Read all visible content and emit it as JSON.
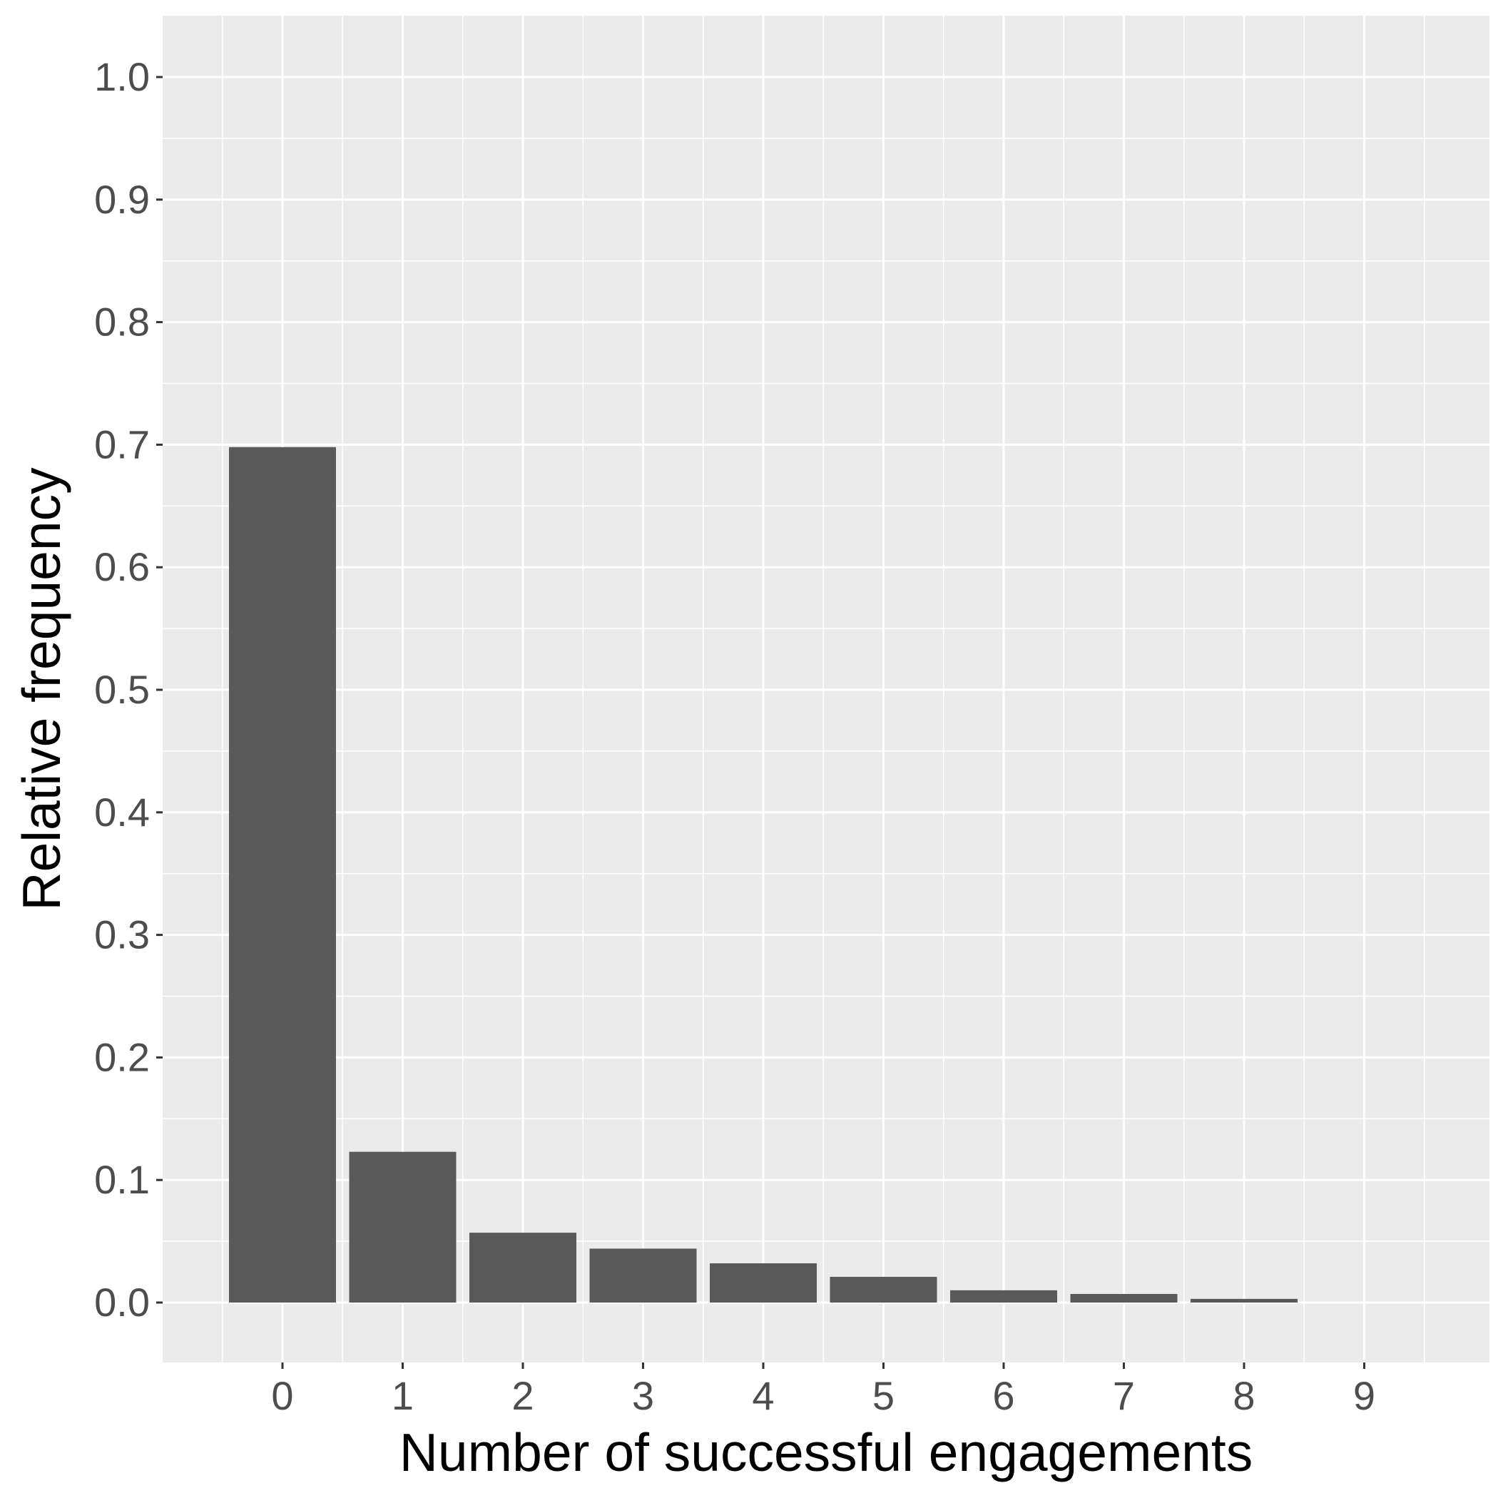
{
  "chart_data": {
    "type": "bar",
    "categories": [
      "0",
      "1",
      "2",
      "3",
      "4",
      "5",
      "6",
      "7",
      "8",
      "9"
    ],
    "values": [
      0.698,
      0.123,
      0.057,
      0.044,
      0.032,
      0.021,
      0.01,
      0.007,
      0.003,
      0.0
    ],
    "xlabel": "Number of successful engagements",
    "ylabel": "Relative frequency",
    "ylim": [
      -0.048,
      1.05
    ],
    "yticks": [
      "0.0",
      "0.1",
      "0.2",
      "0.3",
      "0.4",
      "0.5",
      "0.6",
      "0.7",
      "0.8",
      "0.9",
      "1.0"
    ],
    "grid": true,
    "colors": {
      "bar": "#595959",
      "panel": "#ebebeb",
      "grid": "#ffffff",
      "tick_text": "#4d4d4d",
      "title_text": "#000000"
    }
  }
}
